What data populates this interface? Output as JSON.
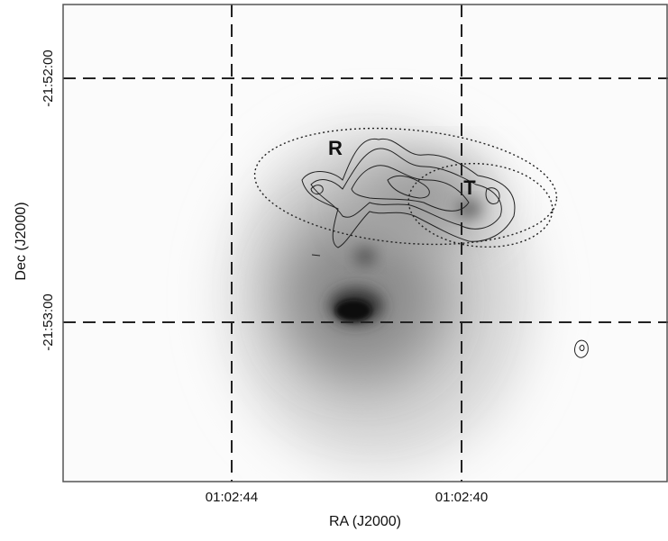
{
  "figure": {
    "x_axis": {
      "title": "RA (J2000)",
      "ticks": [
        "01:02:44",
        "01:02:40"
      ]
    },
    "y_axis": {
      "title": "Dec (J2000)",
      "ticks": [
        "-21:52:00",
        "-21:53:00"
      ]
    },
    "regions": [
      "R",
      "T"
    ]
  }
}
